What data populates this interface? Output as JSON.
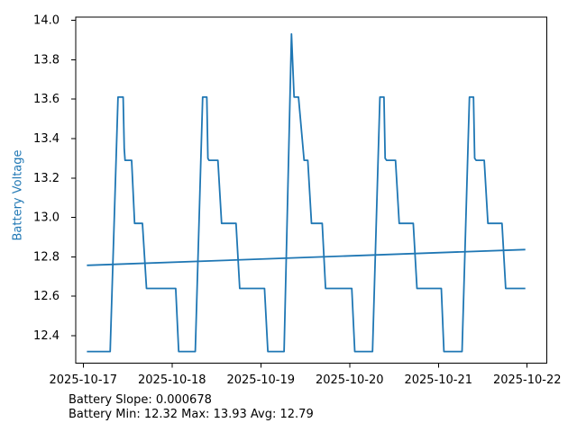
{
  "window": {
    "background": "#ffffff"
  },
  "chart_data": {
    "type": "line",
    "title": "",
    "xlabel": "",
    "ylabel": "Battery Voltage",
    "ylabel_color": "#1f77b4",
    "line_color": "#1f77b4",
    "axis_color": "#000000",
    "tick_label_color": "#000000",
    "grid": false,
    "legend": false,
    "x_unit": "hours since 2025-10-17 00:00",
    "xlim": [
      -2.02,
      125.3
    ],
    "ylim": [
      12.261,
      14.016
    ],
    "x_ticks": [
      0,
      24,
      48,
      72,
      96,
      120
    ],
    "x_tick_labels": [
      "2025-10-17",
      "2025-10-18",
      "2025-10-19",
      "2025-10-20",
      "2025-10-21",
      "2025-10-22"
    ],
    "y_ticks": [
      12.4,
      12.6,
      12.8,
      13.0,
      13.2,
      13.4,
      13.6,
      13.8,
      14.0
    ],
    "series": [
      {
        "name": "battery-voltage",
        "points": [
          [
            1,
            12.32
          ],
          [
            7.3,
            12.32
          ],
          [
            9.4,
            13.61
          ],
          [
            10.8,
            13.61
          ],
          [
            11.1,
            13.35
          ],
          [
            11.3,
            13.29
          ],
          [
            13.1,
            13.29
          ],
          [
            13.9,
            12.97
          ],
          [
            16,
            12.97
          ],
          [
            17.1,
            12.64
          ],
          [
            25,
            12.64
          ],
          [
            25.8,
            12.32
          ],
          [
            30.3,
            12.32
          ],
          [
            32.3,
            13.61
          ],
          [
            33.4,
            13.61
          ],
          [
            33.7,
            13.3
          ],
          [
            34,
            13.29
          ],
          [
            36.4,
            13.29
          ],
          [
            37.4,
            12.97
          ],
          [
            41.3,
            12.97
          ],
          [
            42.3,
            12.64
          ],
          [
            49,
            12.64
          ],
          [
            49.9,
            12.32
          ],
          [
            54.3,
            12.32
          ],
          [
            56.3,
            13.93
          ],
          [
            57,
            13.61
          ],
          [
            58.2,
            13.61
          ],
          [
            59.7,
            13.29
          ],
          [
            60.7,
            13.29
          ],
          [
            61.7,
            12.97
          ],
          [
            64.6,
            12.97
          ],
          [
            65.5,
            12.64
          ],
          [
            72.6,
            12.64
          ],
          [
            73.4,
            12.32
          ],
          [
            78.2,
            12.32
          ],
          [
            80.2,
            13.61
          ],
          [
            81.3,
            13.61
          ],
          [
            81.6,
            13.3
          ],
          [
            82,
            13.29
          ],
          [
            84.4,
            13.29
          ],
          [
            85.4,
            12.97
          ],
          [
            89.2,
            12.97
          ],
          [
            90.2,
            12.64
          ],
          [
            96.8,
            12.64
          ],
          [
            97.5,
            12.32
          ],
          [
            102.4,
            12.32
          ],
          [
            104.4,
            13.61
          ],
          [
            105.5,
            13.61
          ],
          [
            105.8,
            13.3
          ],
          [
            106.2,
            13.29
          ],
          [
            108.4,
            13.29
          ],
          [
            109.4,
            12.97
          ],
          [
            113.2,
            12.97
          ],
          [
            114.2,
            12.64
          ],
          [
            119.5,
            12.64
          ]
        ]
      },
      {
        "name": "trend-line",
        "points": [
          [
            1,
            12.757
          ],
          [
            119.5,
            12.837
          ]
        ]
      }
    ],
    "annotations": [
      "Battery Slope: 0.000678",
      "Battery Min: 12.32 Max: 13.93 Avg: 12.79"
    ]
  }
}
